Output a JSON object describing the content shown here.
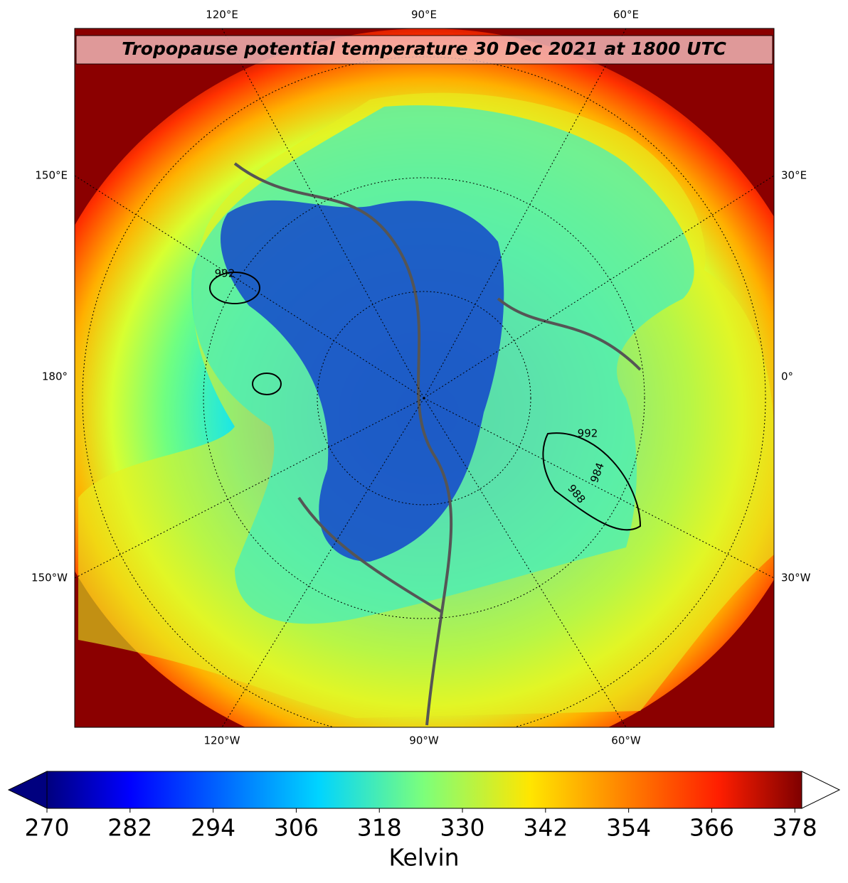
{
  "title": "Tropopause potential temperature 30 Dec 2021 at 1800 UTC",
  "map": {
    "labels_top": [
      "120°E",
      "90°E",
      "60°E"
    ],
    "labels_bottom": [
      "120°W",
      "90°W",
      "60°W"
    ],
    "labels_left": [
      "150°E",
      "180°",
      "150°W"
    ],
    "labels_right": [
      "30°E",
      "0°",
      "30°W"
    ],
    "contour_labels": [
      "992",
      "992",
      "984",
      "988"
    ]
  },
  "colorbar": {
    "range": [
      270,
      379
    ],
    "ticks": [
      270,
      282,
      294,
      306,
      318,
      330,
      342,
      354,
      366,
      378
    ],
    "label": "Kelvin"
  }
}
